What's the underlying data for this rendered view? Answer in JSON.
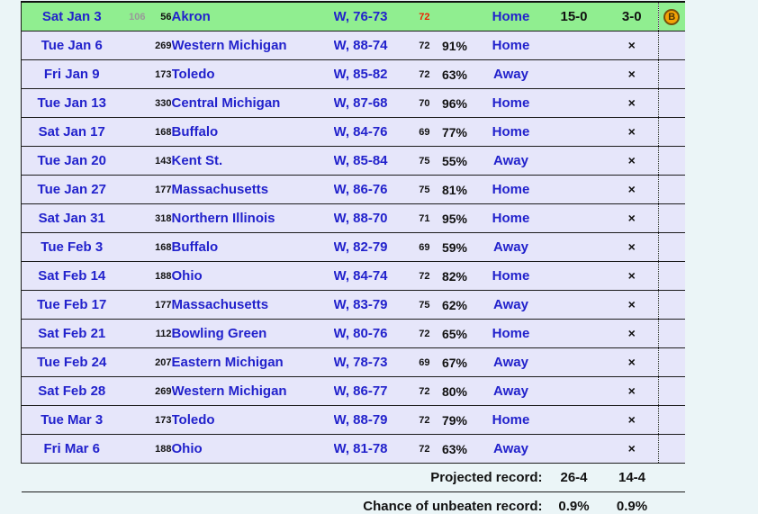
{
  "colors": {
    "page_bg": "#ebf5f7",
    "row_bg": "#e6e6fa",
    "highlight_row_bg": "#90ee90",
    "link_blue": "#2222cc",
    "tempo_red": "#ee2200",
    "pregame_rank_gray": "#999999",
    "line": "#1c1c1c",
    "badge_fill": "#f4a306",
    "badge_border": "#77520a"
  },
  "schedule": {
    "games": [
      {
        "date": "Sat Jan 3",
        "pre_rank": "106",
        "rank": "56",
        "team": "Akron",
        "result": "W, 76-73",
        "tempo": "72",
        "tempo_red": true,
        "pct": "",
        "venue": "Home",
        "record": "15-0",
        "conf_record": "3-0",
        "badge": "B",
        "highlight": true
      },
      {
        "date": "Tue Jan 6",
        "pre_rank": "",
        "rank": "269",
        "team": "Western Michigan",
        "result": "W, 88-74",
        "tempo": "72",
        "pct": "91%",
        "venue": "Home",
        "mark": "×"
      },
      {
        "date": "Fri Jan 9",
        "pre_rank": "",
        "rank": "173",
        "team": "Toledo",
        "result": "W, 85-82",
        "tempo": "72",
        "pct": "63%",
        "venue": "Away",
        "mark": "×"
      },
      {
        "date": "Tue Jan 13",
        "pre_rank": "",
        "rank": "330",
        "team": "Central Michigan",
        "result": "W, 87-68",
        "tempo": "70",
        "pct": "96%",
        "venue": "Home",
        "mark": "×"
      },
      {
        "date": "Sat Jan 17",
        "pre_rank": "",
        "rank": "168",
        "team": "Buffalo",
        "result": "W, 84-76",
        "tempo": "69",
        "pct": "77%",
        "venue": "Home",
        "mark": "×"
      },
      {
        "date": "Tue Jan 20",
        "pre_rank": "",
        "rank": "143",
        "team": "Kent St.",
        "result": "W, 85-84",
        "tempo": "75",
        "pct": "55%",
        "venue": "Away",
        "mark": "×"
      },
      {
        "date": "Tue Jan 27",
        "pre_rank": "",
        "rank": "177",
        "team": "Massachusetts",
        "result": "W, 86-76",
        "tempo": "75",
        "pct": "81%",
        "venue": "Home",
        "mark": "×"
      },
      {
        "date": "Sat Jan 31",
        "pre_rank": "",
        "rank": "318",
        "team": "Northern Illinois",
        "result": "W, 88-70",
        "tempo": "71",
        "pct": "95%",
        "venue": "Home",
        "mark": "×"
      },
      {
        "date": "Tue Feb 3",
        "pre_rank": "",
        "rank": "168",
        "team": "Buffalo",
        "result": "W, 82-79",
        "tempo": "69",
        "pct": "59%",
        "venue": "Away",
        "mark": "×"
      },
      {
        "date": "Sat Feb 14",
        "pre_rank": "",
        "rank": "188",
        "team": "Ohio",
        "result": "W, 84-74",
        "tempo": "72",
        "pct": "82%",
        "venue": "Home",
        "mark": "×"
      },
      {
        "date": "Tue Feb 17",
        "pre_rank": "",
        "rank": "177",
        "team": "Massachusetts",
        "result": "W, 83-79",
        "tempo": "75",
        "pct": "62%",
        "venue": "Away",
        "mark": "×"
      },
      {
        "date": "Sat Feb 21",
        "pre_rank": "",
        "rank": "112",
        "team": "Bowling Green",
        "result": "W, 80-76",
        "tempo": "72",
        "pct": "65%",
        "venue": "Home",
        "mark": "×"
      },
      {
        "date": "Tue Feb 24",
        "pre_rank": "",
        "rank": "207",
        "team": "Eastern Michigan",
        "result": "W, 78-73",
        "tempo": "69",
        "pct": "67%",
        "venue": "Away",
        "mark": "×"
      },
      {
        "date": "Sat Feb 28",
        "pre_rank": "",
        "rank": "269",
        "team": "Western Michigan",
        "result": "W, 86-77",
        "tempo": "72",
        "pct": "80%",
        "venue": "Away",
        "mark": "×"
      },
      {
        "date": "Tue Mar 3",
        "pre_rank": "",
        "rank": "173",
        "team": "Toledo",
        "result": "W, 88-79",
        "tempo": "72",
        "pct": "79%",
        "venue": "Home",
        "mark": "×"
      },
      {
        "date": "Fri Mar 6",
        "pre_rank": "",
        "rank": "188",
        "team": "Ohio",
        "result": "W, 81-78",
        "tempo": "72",
        "pct": "63%",
        "venue": "Away",
        "mark": "×"
      }
    ],
    "footer": [
      {
        "label": "Projected record:",
        "overall": "26-4",
        "conference": "14-4"
      },
      {
        "label": "Chance of unbeaten record:",
        "overall": "0.9%",
        "conference": "0.9%"
      }
    ]
  }
}
